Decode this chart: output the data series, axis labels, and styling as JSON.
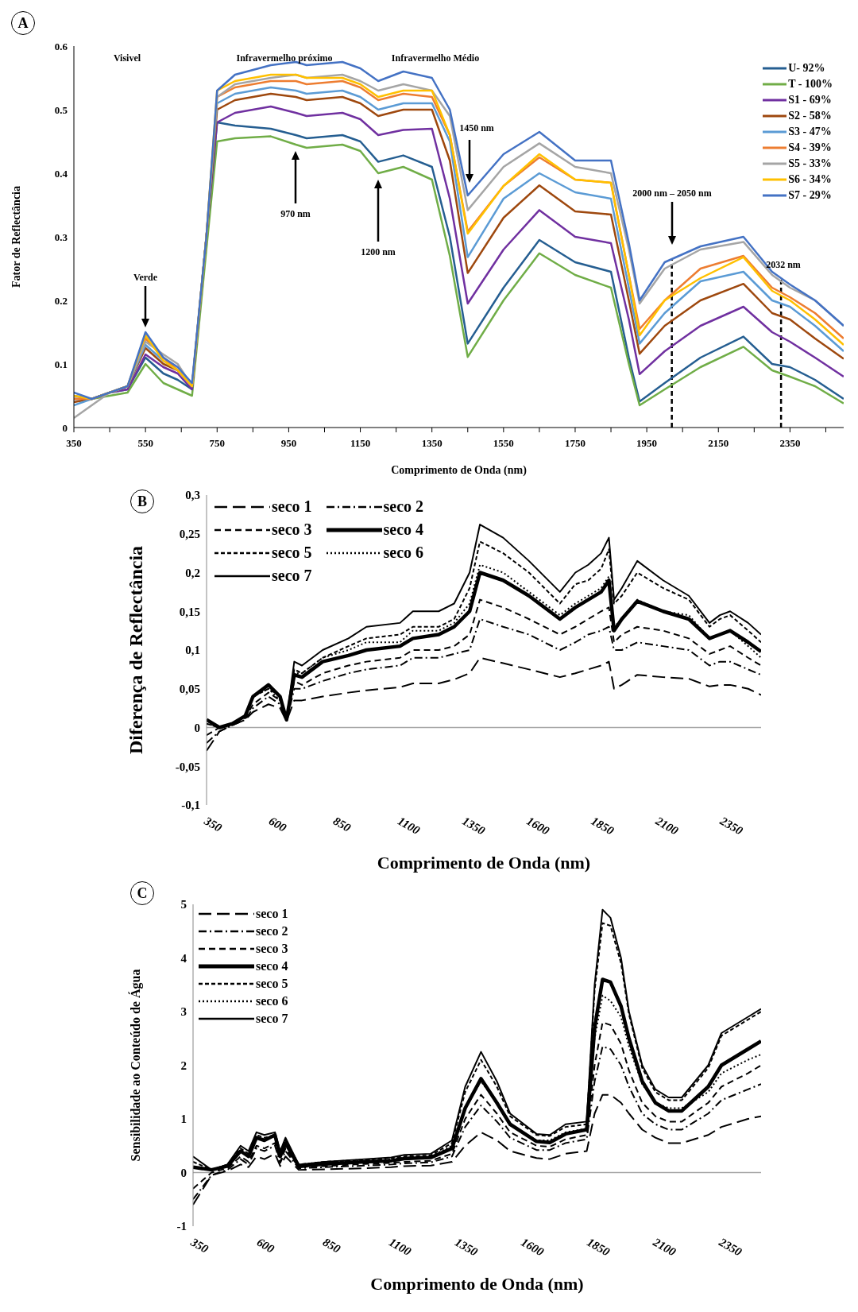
{
  "chart_data": [
    {
      "type": "line",
      "xlabel": "Comprimento de Onda (nm)",
      "ylabel": "Fator de Reflectância",
      "legend": "top right",
      "annotations": [
        "A",
        "Visivel",
        "Infravermelho próximo",
        "Infravermelho Médio",
        "Verde",
        "970 nm",
        "1200 nm",
        "1450 nm",
        "2000 nm – 2050 nm",
        "2032 nm"
      ],
      "xlim": [
        350,
        2500
      ],
      "ylim": [
        0,
        0.6
      ],
      "xticks": [
        350,
        {
          "value": 450,
          "label": null
        },
        550,
        {
          "value": 650,
          "label": null
        },
        750,
        {
          "value": 850,
          "label": null
        },
        950,
        {
          "value": 1050,
          "label": null
        },
        1150,
        {
          "value": 1250,
          "label": null
        },
        1350,
        {
          "value": 1450,
          "label": null
        },
        1550,
        {
          "value": 1650,
          "label": null
        },
        1750,
        {
          "value": 1850,
          "label": null
        },
        1950,
        {
          "value": 2050,
          "label": null
        },
        2150,
        {
          "value": 2250,
          "label": null
        },
        2350,
        {
          "value": 2450,
          "label": null
        }
      ],
      "yticks": [
        0,
        0.1,
        0.2,
        0.3,
        0.4,
        0.5,
        0.6
      ],
      "x": [
        350,
        400,
        450,
        500,
        550,
        600,
        640,
        680,
        720,
        750,
        800,
        900,
        970,
        1000,
        1100,
        1150,
        1200,
        1270,
        1350,
        1400,
        1450,
        1550,
        1650,
        1750,
        1850,
        1900,
        1930,
        2000,
        2100,
        2220,
        2300,
        2350,
        2420,
        2500
      ],
      "series": [
        {
          "name": "U- 92%",
          "color": "#255e91",
          "line_style": "solid",
          "values": [
            0.05,
            0.045,
            0.055,
            0.06,
            0.11,
            0.085,
            0.075,
            0.06,
            0.3,
            0.48,
            0.475,
            0.47,
            0.46,
            0.455,
            0.46,
            0.45,
            0.418,
            0.428,
            0.41,
            0.3,
            0.132,
            0.22,
            0.295,
            0.26,
            0.245,
            0.11,
            0.041,
            0.07,
            0.11,
            0.143,
            0.1,
            0.095,
            0.075,
            0.045
          ]
        },
        {
          "name": "T - 100%",
          "color": "#70ad47",
          "line_style": "solid",
          "values": [
            0.045,
            0.045,
            0.05,
            0.055,
            0.1,
            0.07,
            0.06,
            0.05,
            0.28,
            0.45,
            0.455,
            0.458,
            0.445,
            0.44,
            0.445,
            0.435,
            0.4,
            0.41,
            0.39,
            0.27,
            0.111,
            0.2,
            0.274,
            0.24,
            0.22,
            0.1,
            0.035,
            0.06,
            0.095,
            0.127,
            0.09,
            0.08,
            0.065,
            0.038
          ]
        },
        {
          "name": "S1 - 69%",
          "color": "#7030a0",
          "line_style": "solid",
          "values": [
            0.045,
            0.045,
            0.055,
            0.06,
            0.115,
            0.095,
            0.085,
            0.06,
            0.3,
            0.48,
            0.495,
            0.505,
            0.495,
            0.49,
            0.495,
            0.485,
            0.46,
            0.468,
            0.47,
            0.36,
            0.195,
            0.28,
            0.342,
            0.3,
            0.29,
            0.17,
            0.084,
            0.12,
            0.16,
            0.19,
            0.15,
            0.135,
            0.11,
            0.08
          ]
        },
        {
          "name": "S2 - 58%",
          "color": "#9e480e",
          "line_style": "solid",
          "values": [
            0.04,
            0.045,
            0.055,
            0.065,
            0.125,
            0.1,
            0.09,
            0.065,
            0.3,
            0.5,
            0.515,
            0.525,
            0.52,
            0.515,
            0.52,
            0.51,
            0.49,
            0.5,
            0.5,
            0.42,
            0.243,
            0.33,
            0.381,
            0.34,
            0.335,
            0.2,
            0.116,
            0.16,
            0.2,
            0.226,
            0.18,
            0.17,
            0.14,
            0.108
          ]
        },
        {
          "name": "S3 - 47%",
          "color": "#5b9bd5",
          "line_style": "solid",
          "values": [
            0.035,
            0.045,
            0.055,
            0.065,
            0.13,
            0.105,
            0.09,
            0.065,
            0.3,
            0.51,
            0.525,
            0.535,
            0.53,
            0.525,
            0.53,
            0.52,
            0.5,
            0.51,
            0.51,
            0.45,
            0.268,
            0.36,
            0.4,
            0.37,
            0.36,
            0.22,
            0.132,
            0.18,
            0.23,
            0.245,
            0.2,
            0.19,
            0.16,
            0.12
          ]
        },
        {
          "name": "S4 - 39%",
          "color": "#ed7d31",
          "line_style": "solid",
          "values": [
            0.045,
            0.045,
            0.055,
            0.065,
            0.14,
            0.11,
            0.09,
            0.065,
            0.3,
            0.52,
            0.535,
            0.545,
            0.545,
            0.54,
            0.545,
            0.535,
            0.515,
            0.525,
            0.52,
            0.46,
            0.308,
            0.38,
            0.425,
            0.39,
            0.385,
            0.24,
            0.155,
            0.2,
            0.25,
            0.27,
            0.22,
            0.205,
            0.18,
            0.14
          ]
        },
        {
          "name": "S5 - 33%",
          "color": "#a5a5a5",
          "line_style": "solid",
          "values": [
            0.015,
            0.035,
            0.055,
            0.065,
            0.135,
            0.115,
            0.1,
            0.065,
            0.3,
            0.52,
            0.54,
            0.55,
            0.555,
            0.55,
            0.555,
            0.545,
            0.53,
            0.54,
            0.53,
            0.49,
            0.342,
            0.41,
            0.447,
            0.41,
            0.4,
            0.28,
            0.195,
            0.25,
            0.28,
            0.292,
            0.24,
            0.22,
            0.2,
            0.16
          ]
        },
        {
          "name": "S6 - 34%",
          "color": "#ffc000",
          "line_style": "solid",
          "values": [
            0.05,
            0.045,
            0.055,
            0.065,
            0.145,
            0.105,
            0.09,
            0.065,
            0.3,
            0.53,
            0.545,
            0.555,
            0.555,
            0.55,
            0.55,
            0.54,
            0.52,
            0.53,
            0.53,
            0.46,
            0.305,
            0.38,
            0.43,
            0.39,
            0.385,
            0.24,
            0.145,
            0.2,
            0.235,
            0.268,
            0.215,
            0.2,
            0.17,
            0.13
          ]
        },
        {
          "name": "S7 - 29%",
          "color": "#4472c4",
          "line_style": "solid",
          "values": [
            0.055,
            0.045,
            0.055,
            0.065,
            0.15,
            0.11,
            0.095,
            0.07,
            0.3,
            0.53,
            0.555,
            0.57,
            0.575,
            0.57,
            0.575,
            0.565,
            0.545,
            0.56,
            0.55,
            0.5,
            0.365,
            0.43,
            0.465,
            0.42,
            0.42,
            0.29,
            0.2,
            0.26,
            0.285,
            0.3,
            0.245,
            0.225,
            0.2,
            0.16
          ]
        }
      ],
      "ref_lines": [
        {
          "axis": "x",
          "value": 2020,
          "color": "#000000",
          "line_style": "dashed"
        },
        {
          "axis": "x",
          "value": 2325,
          "color": "#000000",
          "line_style": "dashed"
        }
      ]
    },
    {
      "type": "line",
      "xlabel": "Comprimento de Onda (nm)",
      "ylabel": "Diferença de Reflectância",
      "legend": "top left",
      "annotations": [
        "B"
      ],
      "xlim": [
        350,
        2500
      ],
      "ylim": [
        -0.1,
        0.3
      ],
      "xticks": [
        350,
        600,
        850,
        1100,
        1350,
        1600,
        1850,
        2100,
        2350
      ],
      "yticks": [
        {
          "value": -0.1,
          "label": "-0,1"
        },
        {
          "value": -0.05,
          "label": "-0,05"
        },
        0,
        {
          "value": 0.05,
          "label": "0,05"
        },
        {
          "value": 0.1,
          "label": "0,1"
        },
        {
          "value": 0.15,
          "label": "0,15"
        },
        {
          "value": 0.2,
          "label": "0,2"
        },
        {
          "value": 0.25,
          "label": "0,25"
        },
        {
          "value": 0.3,
          "label": "0,3"
        }
      ],
      "ref_lines": [
        {
          "axis": "y",
          "value": 0,
          "color": "#a6a6a6"
        }
      ],
      "x": [
        350,
        400,
        450,
        500,
        530,
        590,
        635,
        660,
        690,
        720,
        800,
        900,
        970,
        1100,
        1150,
        1250,
        1310,
        1370,
        1410,
        1500,
        1600,
        1720,
        1780,
        1830,
        1880,
        1910,
        1930,
        1960,
        2020,
        2120,
        2220,
        2300,
        2340,
        2380,
        2450,
        2500
      ],
      "series": [
        {
          "name": "seco 1",
          "color": "#000000",
          "line_style": "dashed",
          "values": [
            -0.03,
            -0.005,
            0.003,
            0.01,
            0.02,
            0.03,
            0.025,
            0.008,
            0.035,
            0.035,
            0.04,
            0.045,
            0.048,
            0.052,
            0.057,
            0.057,
            0.062,
            0.07,
            0.09,
            0.083,
            0.075,
            0.065,
            0.07,
            0.075,
            0.08,
            0.085,
            0.05,
            0.055,
            0.068,
            0.065,
            0.063,
            0.053,
            0.055,
            0.055,
            0.05,
            0.042
          ]
        },
        {
          "name": "seco 2",
          "color": "#000000",
          "line_style": "dashed",
          "values": [
            -0.02,
            -0.005,
            0.003,
            0.01,
            0.025,
            0.04,
            0.03,
            0.008,
            0.05,
            0.05,
            0.06,
            0.07,
            0.075,
            0.08,
            0.09,
            0.09,
            0.095,
            0.1,
            0.14,
            0.13,
            0.12,
            0.1,
            0.11,
            0.12,
            0.125,
            0.13,
            0.1,
            0.1,
            0.11,
            0.105,
            0.1,
            0.08,
            0.085,
            0.085,
            0.075,
            0.068
          ]
        },
        {
          "name": "seco 3",
          "color": "#000000",
          "line_style": "dashed",
          "values": [
            -0.01,
            0,
            0.005,
            0.012,
            0.03,
            0.045,
            0.035,
            0.01,
            0.06,
            0.055,
            0.07,
            0.08,
            0.085,
            0.09,
            0.1,
            0.1,
            0.105,
            0.12,
            0.165,
            0.155,
            0.14,
            0.12,
            0.13,
            0.14,
            0.15,
            0.155,
            0.11,
            0.12,
            0.13,
            0.125,
            0.115,
            0.095,
            0.1,
            0.105,
            0.09,
            0.08
          ]
        },
        {
          "name": "seco 4",
          "color": "#000000",
          "line_style": "solid",
          "values": [
            0.01,
            0,
            0.005,
            0.015,
            0.04,
            0.055,
            0.04,
            0.01,
            0.068,
            0.065,
            0.085,
            0.093,
            0.1,
            0.105,
            0.115,
            0.12,
            0.13,
            0.15,
            0.2,
            0.19,
            0.17,
            0.14,
            0.155,
            0.165,
            0.175,
            0.19,
            0.125,
            0.14,
            0.163,
            0.15,
            0.14,
            0.115,
            0.12,
            0.125,
            0.11,
            0.098
          ]
        },
        {
          "name": "seco 5",
          "color": "#000000",
          "line_style": "dashed",
          "values": [
            0.005,
            0,
            0.005,
            0.015,
            0.04,
            0.05,
            0.04,
            0.01,
            0.075,
            0.07,
            0.09,
            0.105,
            0.115,
            0.12,
            0.13,
            0.13,
            0.14,
            0.18,
            0.24,
            0.225,
            0.2,
            0.16,
            0.185,
            0.19,
            0.205,
            0.23,
            0.16,
            0.17,
            0.2,
            0.18,
            0.165,
            0.13,
            0.14,
            0.145,
            0.125,
            0.11
          ]
        },
        {
          "name": "seco 6",
          "color": "#000000",
          "line_style": "dotted",
          "values": [
            0.005,
            0,
            0.005,
            0.015,
            0.04,
            0.05,
            0.035,
            0.01,
            0.07,
            0.07,
            0.09,
            0.1,
            0.11,
            0.11,
            0.125,
            0.125,
            0.135,
            0.16,
            0.21,
            0.2,
            0.175,
            0.145,
            0.16,
            0.17,
            0.18,
            0.195,
            0.13,
            0.14,
            0.165,
            0.15,
            0.145,
            0.115,
            0.12,
            0.125,
            0.105,
            0.09
          ]
        },
        {
          "name": "seco 7",
          "color": "#000000",
          "line_style": "solid",
          "values": [
            0.01,
            0,
            0.005,
            0.015,
            0.04,
            0.055,
            0.04,
            0.01,
            0.085,
            0.08,
            0.1,
            0.115,
            0.13,
            0.135,
            0.15,
            0.15,
            0.16,
            0.2,
            0.262,
            0.245,
            0.215,
            0.175,
            0.2,
            0.21,
            0.225,
            0.245,
            0.165,
            0.18,
            0.215,
            0.19,
            0.17,
            0.135,
            0.145,
            0.15,
            0.135,
            0.12
          ]
        }
      ]
    },
    {
      "type": "line",
      "xlabel": "Comprimento de Onda (nm)",
      "ylabel": "Sensibilidade ao Conteúdo de Água",
      "legend": "top left",
      "annotations": [
        "C"
      ],
      "xlim": [
        350,
        2500
      ],
      "ylim": [
        -1,
        5
      ],
      "xticks": [
        350,
        600,
        850,
        1100,
        1350,
        1600,
        1850,
        2100,
        2350
      ],
      "yticks": [
        -1,
        0,
        1,
        2,
        3,
        4,
        5
      ],
      "ref_lines": [
        {
          "axis": "y",
          "value": 0,
          "color": "#a6a6a6"
        }
      ],
      "x": [
        350,
        420,
        480,
        530,
        560,
        590,
        620,
        660,
        680,
        700,
        750,
        850,
        1000,
        1100,
        1150,
        1250,
        1330,
        1380,
        1440,
        1500,
        1550,
        1650,
        1700,
        1760,
        1840,
        1870,
        1900,
        1930,
        1970,
        2000,
        2050,
        2100,
        2150,
        2200,
        2300,
        2350,
        2450,
        2500
      ],
      "series": [
        {
          "name": "seco 1",
          "color": "#000000",
          "line_style": "dashed",
          "values": [
            -0.6,
            -0.05,
            0.03,
            0.15,
            0.1,
            0.3,
            0.25,
            0.35,
            0.12,
            0.3,
            0.05,
            0.06,
            0.08,
            0.1,
            0.12,
            0.13,
            0.2,
            0.5,
            0.75,
            0.6,
            0.4,
            0.27,
            0.25,
            0.35,
            0.4,
            1.1,
            1.45,
            1.45,
            1.3,
            1.1,
            0.8,
            0.65,
            0.55,
            0.55,
            0.7,
            0.85,
            1,
            1.05
          ]
        },
        {
          "name": "seco 2",
          "color": "#000000",
          "line_style": "dashed",
          "values": [
            -0.5,
            -0.05,
            0.05,
            0.25,
            0.15,
            0.45,
            0.4,
            0.5,
            0.18,
            0.4,
            0.08,
            0.1,
            0.13,
            0.15,
            0.17,
            0.19,
            0.3,
            0.85,
            1.25,
            0.95,
            0.65,
            0.42,
            0.42,
            0.55,
            0.62,
            1.7,
            2.35,
            2.3,
            2,
            1.6,
            1.1,
            0.9,
            0.8,
            0.8,
            1.1,
            1.35,
            1.55,
            1.65
          ]
        },
        {
          "name": "seco 3",
          "color": "#000000",
          "line_style": "dashed",
          "values": [
            -0.3,
            0,
            0.08,
            0.3,
            0.2,
            0.5,
            0.45,
            0.55,
            0.2,
            0.45,
            0.1,
            0.12,
            0.16,
            0.18,
            0.2,
            0.22,
            0.35,
            1,
            1.45,
            1.1,
            0.75,
            0.5,
            0.48,
            0.62,
            0.7,
            2,
            2.8,
            2.75,
            2.4,
            1.9,
            1.3,
            1.05,
            0.95,
            0.95,
            1.3,
            1.6,
            1.85,
            2
          ]
        },
        {
          "name": "seco 4",
          "color": "#000000",
          "line_style": "solid",
          "values": [
            0.1,
            0.05,
            0.12,
            0.4,
            0.3,
            0.65,
            0.6,
            0.7,
            0.3,
            0.55,
            0.12,
            0.16,
            0.2,
            0.22,
            0.26,
            0.28,
            0.45,
            1.2,
            1.75,
            1.3,
            0.9,
            0.58,
            0.56,
            0.72,
            0.8,
            2.7,
            3.6,
            3.55,
            3.1,
            2.5,
            1.7,
            1.3,
            1.15,
            1.15,
            1.6,
            2,
            2.3,
            2.45
          ]
        },
        {
          "name": "seco 5",
          "color": "#000000",
          "line_style": "dashed",
          "values": [
            0.2,
            0.05,
            0.15,
            0.45,
            0.35,
            0.7,
            0.65,
            0.7,
            0.35,
            0.6,
            0.15,
            0.2,
            0.24,
            0.27,
            0.3,
            0.32,
            0.55,
            1.5,
            2.1,
            1.6,
            1.05,
            0.7,
            0.68,
            0.85,
            0.9,
            3.4,
            4.65,
            4.6,
            3.9,
            2.95,
            1.95,
            1.5,
            1.35,
            1.35,
            1.95,
            2.55,
            2.85,
            3
          ]
        },
        {
          "name": "seco 6",
          "color": "#000000",
          "line_style": "dotted",
          "values": [
            0.1,
            0.05,
            0.12,
            0.4,
            0.3,
            0.65,
            0.6,
            0.7,
            0.3,
            0.55,
            0.12,
            0.18,
            0.22,
            0.25,
            0.28,
            0.3,
            0.5,
            1.2,
            1.7,
            1.3,
            0.9,
            0.6,
            0.6,
            0.75,
            0.82,
            2.5,
            3.3,
            3.2,
            2.9,
            2.35,
            1.65,
            1.3,
            1.2,
            1.2,
            1.5,
            1.85,
            2.1,
            2.2
          ]
        },
        {
          "name": "seco 7",
          "color": "#000000",
          "line_style": "solid",
          "values": [
            0.3,
            0.05,
            0.15,
            0.5,
            0.4,
            0.75,
            0.7,
            0.75,
            0.4,
            0.65,
            0.15,
            0.2,
            0.25,
            0.28,
            0.33,
            0.35,
            0.6,
            1.6,
            2.25,
            1.7,
            1.1,
            0.72,
            0.7,
            0.9,
            0.95,
            3.5,
            4.9,
            4.75,
            4,
            3,
            2,
            1.55,
            1.4,
            1.4,
            2,
            2.6,
            2.9,
            3.05
          ]
        }
      ]
    }
  ]
}
